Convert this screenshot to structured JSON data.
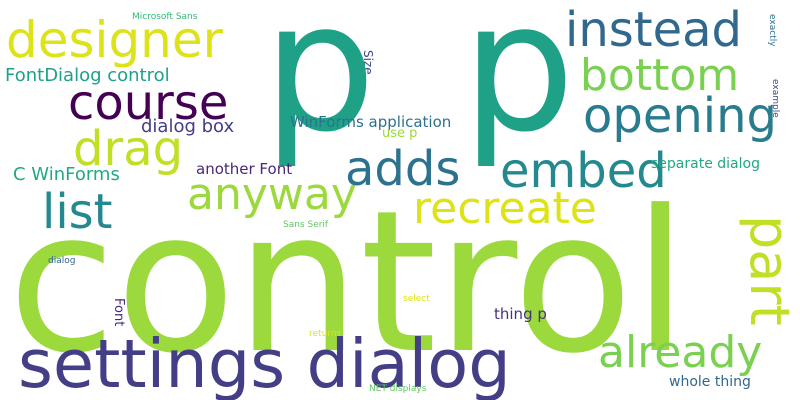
{
  "words": {
    "control": {
      "text": "control",
      "color": "#9bd93c"
    },
    "p1": {
      "text": "p",
      "color": "#1fa188"
    },
    "p2": {
      "text": "p",
      "color": "#1fa188"
    },
    "settings_dialog": {
      "text": "settings dialog",
      "color": "#433e85"
    },
    "designer": {
      "text": "designer",
      "color": "#dde318"
    },
    "instead": {
      "text": "instead",
      "color": "#31688e"
    },
    "course": {
      "text": "course",
      "color": "#440154"
    },
    "bottom": {
      "text": "bottom",
      "color": "#7ad151"
    },
    "opening": {
      "text": "opening",
      "color": "#287c8e"
    },
    "drag": {
      "text": "drag",
      "color": "#c0df25"
    },
    "adds": {
      "text": "adds",
      "color": "#2c728e"
    },
    "embed": {
      "text": "embed",
      "color": "#23898e"
    },
    "anyway": {
      "text": "anyway",
      "color": "#9bd93c"
    },
    "list": {
      "text": "list",
      "color": "#23898e"
    },
    "recreate": {
      "text": "recreate",
      "color": "#dde318"
    },
    "part": {
      "text": "part",
      "color": "#c0df25"
    },
    "already": {
      "text": "already",
      "color": "#7ad151"
    },
    "fontdialog_control": {
      "text": "FontDialog control",
      "color": "#1fa188"
    },
    "dialog_box": {
      "text": "dialog box",
      "color": "#433e85"
    },
    "c_winforms": {
      "text": "C WinForms",
      "color": "#22a884"
    },
    "another_font": {
      "text": "another Font",
      "color": "#482878"
    },
    "winforms_application": {
      "text": "WinForms application",
      "color": "#2c728e"
    },
    "use_p": {
      "text": "use p",
      "color": "#9bd93c"
    },
    "separate_dialog": {
      "text": "separate dialog",
      "color": "#22a884"
    },
    "microsoft_sans": {
      "text": "Microsoft Sans",
      "color": "#35b779"
    },
    "size": {
      "text": "Size",
      "color": "#3e4a89"
    },
    "exactly": {
      "text": "exactly",
      "color": "#2c728e"
    },
    "example": {
      "text": "example",
      "color": "#3e4a89"
    },
    "sans_serif": {
      "text": "Sans Serif",
      "color": "#5ec962"
    },
    "dialog": {
      "text": "dialog",
      "color": "#31688e"
    },
    "font": {
      "text": "Font",
      "color": "#482878"
    },
    "thing_p": {
      "text": "thing p",
      "color": "#46327e"
    },
    "select": {
      "text": "select",
      "color": "#dde318"
    },
    "returns": {
      "text": "returns",
      "color": "#dde318"
    },
    "net_displays": {
      "text": "NET displays",
      "color": "#5ec962"
    },
    "whole_thing": {
      "text": "whole thing",
      "color": "#31688e"
    }
  }
}
